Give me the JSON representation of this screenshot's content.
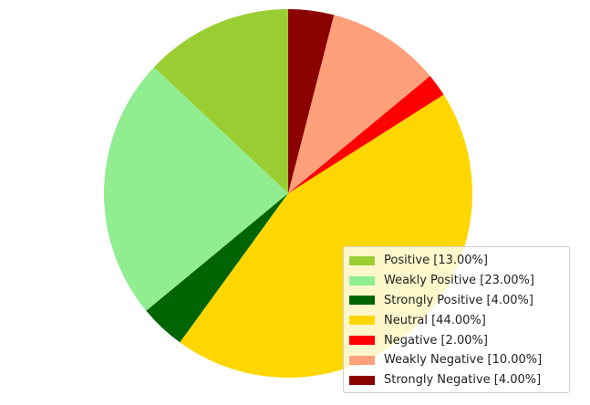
{
  "chart_data": {
    "type": "pie",
    "start_angle_deg": 90,
    "direction": "counterclockwise",
    "legend_placement": "lower-right",
    "title": "",
    "slices": [
      {
        "label": "Positive",
        "legend_text": "Positive [13.00%]",
        "value": 13.0,
        "color": "#9acd32"
      },
      {
        "label": "Weakly Positive",
        "legend_text": "Weakly Positive [23.00%]",
        "value": 23.0,
        "color": "#90ee90"
      },
      {
        "label": "Strongly Positive",
        "legend_text": "Strongly Positive [4.00%]",
        "value": 4.0,
        "color": "#006400"
      },
      {
        "label": "Neutral",
        "legend_text": "Neutral [44.00%]",
        "value": 44.0,
        "color": "#ffd700"
      },
      {
        "label": "Negative",
        "legend_text": "Negative [2.00%]",
        "value": 2.0,
        "color": "#ff0000"
      },
      {
        "label": "Weakly Negative",
        "legend_text": "Weakly Negative [10.00%]",
        "value": 10.0,
        "color": "#ffa07a"
      },
      {
        "label": "Strongly Negative",
        "legend_text": "Strongly Negative [4.00%]",
        "value": 4.0,
        "color": "#8b0000"
      }
    ]
  }
}
